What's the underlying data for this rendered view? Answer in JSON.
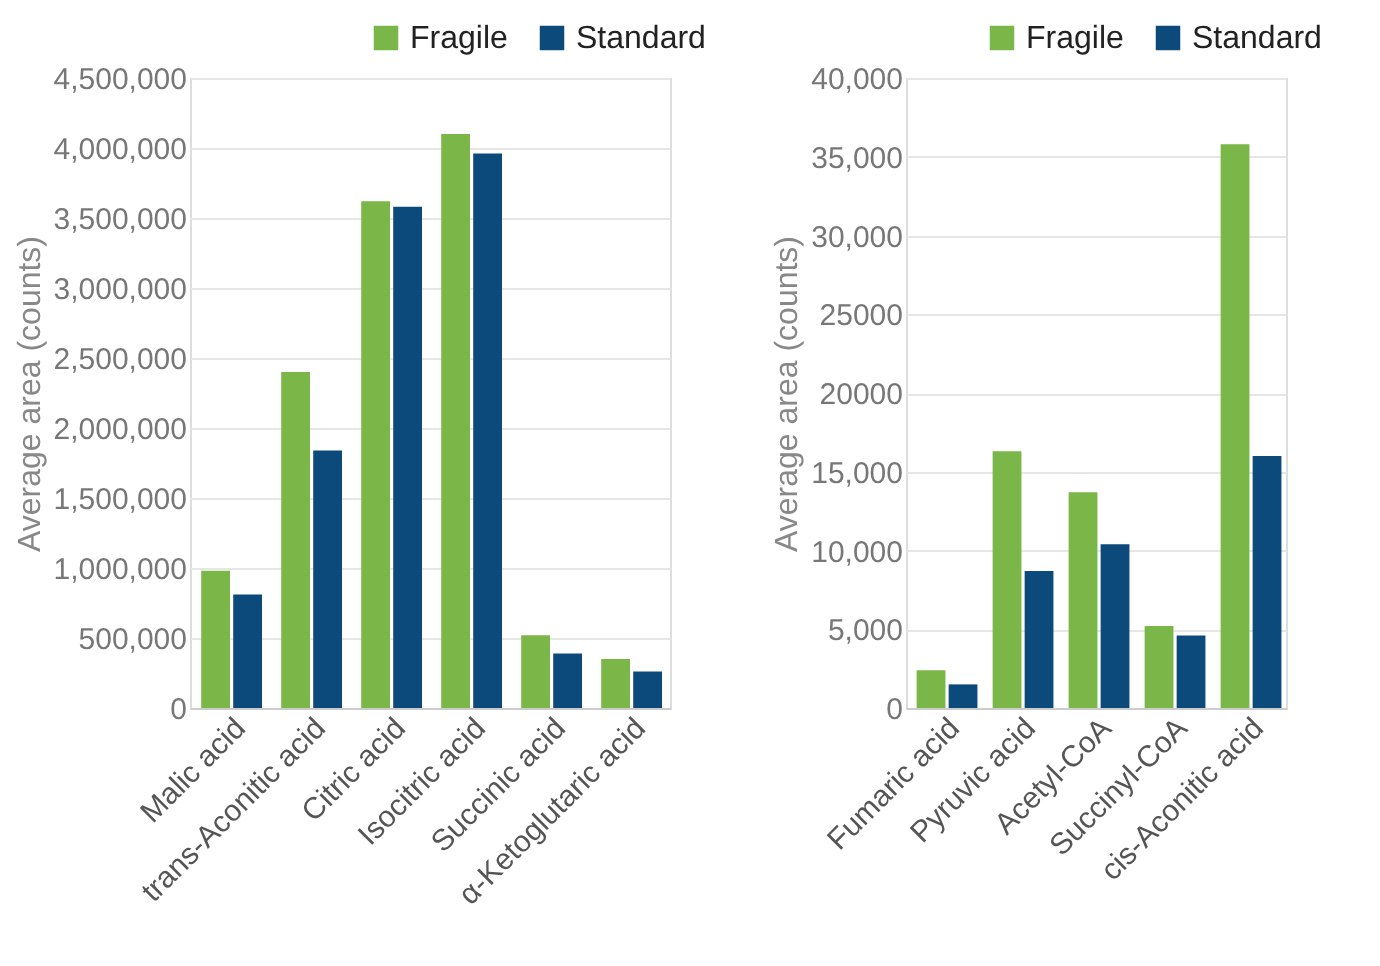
{
  "chart_data": [
    {
      "type": "bar",
      "ylabel": "Average area (counts)",
      "categories": [
        "Malic acid",
        "trans-Aconitic acid",
        "Citric acid",
        "Isocitric acid",
        "Succinic acid",
        "α-Ketoglutaric acid"
      ],
      "series": [
        {
          "name": "Fragile",
          "color": "#7ab648",
          "values": [
            980000,
            2400000,
            3620000,
            4100000,
            520000,
            350000
          ]
        },
        {
          "name": "Standard",
          "color": "#0d4a7c",
          "values": [
            810000,
            1840000,
            3580000,
            3960000,
            390000,
            260000
          ]
        }
      ],
      "ylim": [
        0,
        4500000
      ],
      "yticks": [
        {
          "value": 0,
          "label": "0"
        },
        {
          "value": 500000,
          "label": "500,000"
        },
        {
          "value": 1000000,
          "label": "1,000,000"
        },
        {
          "value": 1500000,
          "label": "1,500,000"
        },
        {
          "value": 2000000,
          "label": "2,000,000"
        },
        {
          "value": 2500000,
          "label": "2,500,000"
        },
        {
          "value": 3000000,
          "label": "3,000,000"
        },
        {
          "value": 3500000,
          "label": "3,500,000"
        },
        {
          "value": 4000000,
          "label": "4,000,000"
        },
        {
          "value": 4500000,
          "label": "4,500,000"
        }
      ],
      "grid": "y",
      "legend": "top right"
    },
    {
      "type": "bar",
      "ylabel": "Average area (counts)",
      "categories": [
        "Fumaric acid",
        "Pyruvic acid",
        "Acetyl-CoA",
        "Succinyl-CoA",
        "cis-Aconitic acid"
      ],
      "series": [
        {
          "name": "Fragile",
          "color": "#7ab648",
          "values": [
            2400,
            16300,
            13700,
            5200,
            35800
          ]
        },
        {
          "name": "Standard",
          "color": "#0d4a7c",
          "values": [
            1500,
            8700,
            10400,
            4600,
            16000
          ]
        }
      ],
      "ylim": [
        0,
        40000
      ],
      "yticks": [
        0,
        {
          "value": 5000,
          "label": "5,000"
        },
        {
          "value": 10000,
          "label": "10,000"
        },
        {
          "value": 15000,
          "label": "15,000"
        },
        20000,
        25000,
        {
          "value": 30000,
          "label": "30,000"
        },
        {
          "value": 35000,
          "label": "35,000"
        },
        {
          "value": 40000,
          "label": "40,000"
        }
      ],
      "grid": "y",
      "legend": "top right"
    }
  ]
}
